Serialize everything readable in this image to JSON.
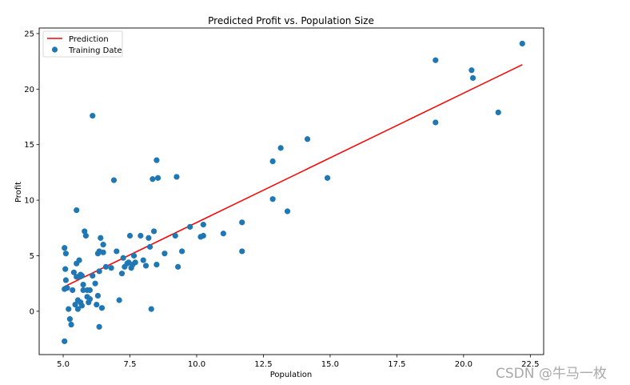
{
  "chart_data": {
    "type": "scatter",
    "title": "Predicted Profit vs. Population Size",
    "xlabel": "Population",
    "ylabel": "Profit",
    "xlim": [
      4.1,
      23.0
    ],
    "ylim": [
      -3.9,
      25.5
    ],
    "xticks": [
      5.0,
      7.5,
      10.0,
      12.5,
      15.0,
      17.5,
      20.0,
      22.5
    ],
    "xtick_labels": [
      "5.0",
      "7.5",
      "10.0",
      "12.5",
      "15.0",
      "17.5",
      "20.0",
      "22.5"
    ],
    "yticks": [
      0,
      5,
      10,
      15,
      20,
      25
    ],
    "ytick_labels": [
      "0",
      "5",
      "10",
      "15",
      "20",
      "25"
    ],
    "grid": false,
    "legend_position": "top-left",
    "series": [
      {
        "name": "Prediction",
        "type": "line",
        "color": "#ff0000",
        "x": [
          5.03,
          22.2
        ],
        "y": [
          2.2,
          22.2
        ]
      },
      {
        "name": "Training Date",
        "type": "scatter",
        "color": "#1f77b4",
        "x": [
          5.05,
          5.05,
          5.08,
          5.1,
          5.1,
          5.15,
          5.2,
          5.25,
          5.3,
          5.35,
          5.4,
          5.45,
          5.5,
          5.5,
          5.55,
          5.55,
          5.6,
          5.6,
          5.65,
          5.65,
          5.7,
          5.7,
          5.75,
          5.75,
          5.8,
          5.85,
          5.9,
          5.9,
          5.95,
          6.0,
          6.0,
          6.1,
          6.2,
          6.25,
          6.3,
          6.3,
          6.35,
          6.35,
          6.4,
          6.45,
          6.5,
          6.5,
          6.6,
          6.8,
          6.9,
          7.0,
          7.1,
          7.2,
          7.25,
          7.3,
          7.4,
          7.45,
          7.5,
          7.55,
          7.6,
          7.65,
          7.7,
          7.9,
          8.0,
          8.1,
          8.2,
          8.25,
          8.3,
          8.35,
          8.4,
          8.5,
          8.5,
          8.55,
          8.8,
          9.2,
          9.25,
          9.3,
          9.45,
          9.75,
          10.15,
          10.25,
          10.25,
          11.0,
          11.7,
          11.7,
          12.85,
          12.85,
          13.15,
          13.4,
          14.15,
          14.9,
          18.95,
          18.95,
          20.3,
          20.35,
          21.3,
          22.2,
          5.05,
          5.5,
          6.1,
          6.35
        ],
        "y": [
          -2.7,
          5.7,
          3.8,
          2.8,
          5.2,
          2.1,
          0.2,
          -0.7,
          -1.2,
          1.9,
          3.5,
          0.6,
          4.3,
          9.1,
          0.2,
          1.0,
          3.1,
          4.6,
          0.8,
          3.3,
          0.5,
          3.2,
          1.9,
          2.4,
          7.2,
          6.8,
          1.9,
          1.3,
          0.8,
          1.1,
          1.9,
          3.2,
          2.5,
          0.6,
          5.2,
          1.4,
          5.4,
          3.6,
          6.6,
          0.3,
          5.3,
          6.0,
          4.0,
          3.9,
          11.8,
          5.4,
          1.0,
          3.4,
          4.8,
          4.0,
          4.3,
          4.4,
          6.8,
          3.9,
          4.2,
          5.0,
          4.4,
          6.8,
          4.6,
          4.1,
          6.6,
          5.8,
          0.2,
          11.9,
          7.2,
          13.6,
          4.2,
          12.0,
          5.2,
          6.8,
          12.1,
          4.0,
          5.4,
          7.6,
          6.7,
          6.8,
          7.8,
          7.0,
          8.0,
          5.4,
          13.5,
          10.1,
          14.7,
          9.0,
          15.5,
          12.0,
          22.6,
          17.0,
          21.7,
          21.0,
          17.9,
          24.1,
          2.0,
          3.1,
          17.6,
          -1.4
        ]
      }
    ]
  },
  "watermark": "CSDN @牛马一枚"
}
